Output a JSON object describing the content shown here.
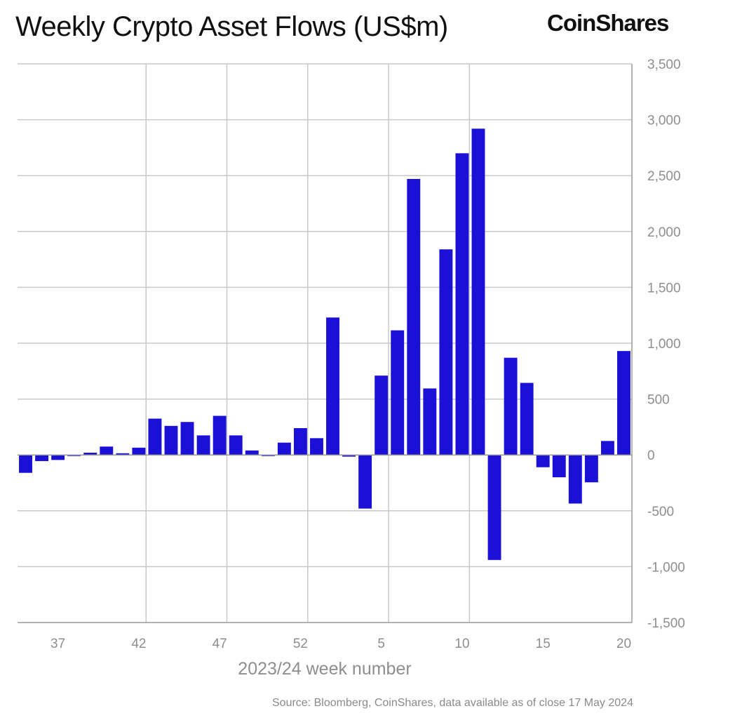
{
  "header": {
    "title": "Weekly Crypto Asset Flows (US$m)",
    "brand": "CoinShares"
  },
  "footer": {
    "source": "Source: Bloomberg, CoinShares, data available as of close 17 May 2024"
  },
  "colors": {
    "bar": "#1a10d6",
    "grid": "#c8c8c8",
    "axis": "#9a9a9a",
    "text": "#8e8e8e"
  },
  "chart_data": {
    "type": "bar",
    "title": "Weekly Crypto Asset Flows (US$m)",
    "xlabel": "2023/24 week number",
    "ylabel": "",
    "y_axis_side": "right",
    "ylim": [
      -1500,
      3500
    ],
    "yticks": [
      3500,
      3000,
      2500,
      2000,
      1500,
      1000,
      500,
      0,
      -500,
      -1000,
      -1500
    ],
    "ytick_labels": [
      "3,500",
      "3,000",
      "2,500",
      "2,000",
      "1,500",
      "1,000",
      "500",
      "0",
      "-500",
      "-1,000",
      "-1,500"
    ],
    "grid": true,
    "legend": "none",
    "categories": [
      "35",
      "36",
      "37",
      "38",
      "39",
      "40",
      "41",
      "42",
      "43",
      "44",
      "45",
      "46",
      "47",
      "48",
      "49",
      "50",
      "51",
      "52",
      "1",
      "2",
      "3",
      "4",
      "5",
      "6",
      "7",
      "8",
      "9",
      "10",
      "11",
      "12",
      "13",
      "14",
      "15",
      "16",
      "17",
      "18",
      "19",
      "20"
    ],
    "xtick_labels": [
      "37",
      "42",
      "47",
      "52",
      "5",
      "10",
      "15",
      "20"
    ],
    "values": [
      -160,
      -55,
      -45,
      -10,
      20,
      75,
      15,
      65,
      325,
      260,
      295,
      175,
      350,
      175,
      40,
      -10,
      110,
      240,
      150,
      1230,
      -15,
      -480,
      710,
      1115,
      2470,
      595,
      1840,
      2700,
      2920,
      -940,
      870,
      645,
      -110,
      -200,
      -435,
      -245,
      125,
      930
    ]
  }
}
